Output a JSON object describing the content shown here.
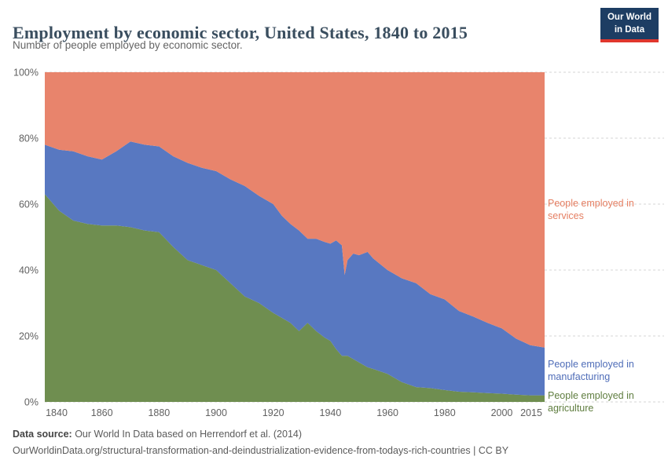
{
  "header": {
    "title": "Employment by economic sector, United States, 1840 to 2015",
    "subtitle": "Number of people employed by economic sector.",
    "logo": {
      "line1": "Our World",
      "line2": "in Data"
    }
  },
  "theme": {
    "logo_bg": "#1d3d63",
    "logo_accent": "#e0362d",
    "axis_text": "#616161",
    "grid_color": "#d6d6d6"
  },
  "chart_data": {
    "type": "area",
    "stacked": true,
    "percent": true,
    "title": "Employment by economic sector, United States, 1840 to 2015",
    "xlabel": "",
    "ylabel": "",
    "ylim": [
      0,
      100
    ],
    "grid": "dashed-horizontal",
    "legend_position": "right-labels",
    "x": [
      1840,
      1845,
      1850,
      1855,
      1860,
      1865,
      1870,
      1875,
      1880,
      1885,
      1890,
      1895,
      1900,
      1905,
      1910,
      1915,
      1920,
      1923,
      1926,
      1929,
      1932,
      1935,
      1938,
      1940,
      1942,
      1944,
      1945,
      1946,
      1948,
      1950,
      1953,
      1955,
      1960,
      1965,
      1970,
      1975,
      1980,
      1985,
      1990,
      1995,
      2000,
      2005,
      2010,
      2015
    ],
    "xticks": [
      1840,
      1860,
      1880,
      1900,
      1920,
      1940,
      1960,
      1980,
      2000,
      2015
    ],
    "yticks": [
      "0%",
      "20%",
      "40%",
      "60%",
      "80%",
      "100%"
    ],
    "series": [
      {
        "name": "People employed in agriculture",
        "color": "#6f8e50",
        "label_color": "#5f7d3f",
        "values": [
          63,
          58,
          55,
          54,
          53.5,
          53.5,
          53,
          52,
          51.5,
          47,
          43,
          41.5,
          40,
          36,
          32,
          30,
          27,
          25.5,
          24,
          21.5,
          24,
          21.5,
          19.5,
          18.5,
          16,
          14,
          14,
          14,
          13,
          12,
          10.5,
          10,
          8.5,
          6,
          4.5,
          4.2,
          3.6,
          3.1,
          2.9,
          2.7,
          2.5,
          2.2,
          2,
          2
        ]
      },
      {
        "name": "People employed in manufacturing",
        "color": "#5878c1",
        "label_color": "#4f6db8",
        "values": [
          15,
          18.5,
          21,
          20.5,
          20,
          22.5,
          26,
          26,
          26,
          27.5,
          29.5,
          29.5,
          30,
          31.5,
          33.5,
          32.5,
          33,
          31,
          30,
          30.5,
          25.5,
          28,
          29,
          29.5,
          33,
          33.5,
          24.5,
          29,
          32,
          32.5,
          35,
          33.5,
          31.5,
          31.5,
          31.5,
          28.5,
          27.5,
          24.5,
          23,
          21.3,
          19.8,
          17,
          15.2,
          14.5
        ]
      },
      {
        "name": "People employed in services",
        "color": "#e8846c",
        "label_color": "#e57f63",
        "values": [
          22,
          23.5,
          24,
          25.5,
          26.5,
          24,
          21,
          22,
          22.5,
          25.5,
          27.5,
          29,
          30,
          32.5,
          34.5,
          37.5,
          40,
          43.5,
          46,
          48,
          50.5,
          50.5,
          51.5,
          52,
          51,
          52.5,
          61.5,
          57,
          55,
          55.5,
          54.5,
          56.5,
          60,
          62.5,
          64,
          67.3,
          68.9,
          72.4,
          74.1,
          76,
          77.7,
          80.8,
          82.8,
          83.5
        ]
      }
    ]
  },
  "footer": {
    "source_label": "Data source:",
    "source_text": " Our World In Data based on Herrendorf et al. (2014)",
    "link": "OurWorldinData.org/structural-transformation-and-deindustrialization-evidence-from-todays-rich-countries | CC BY"
  }
}
